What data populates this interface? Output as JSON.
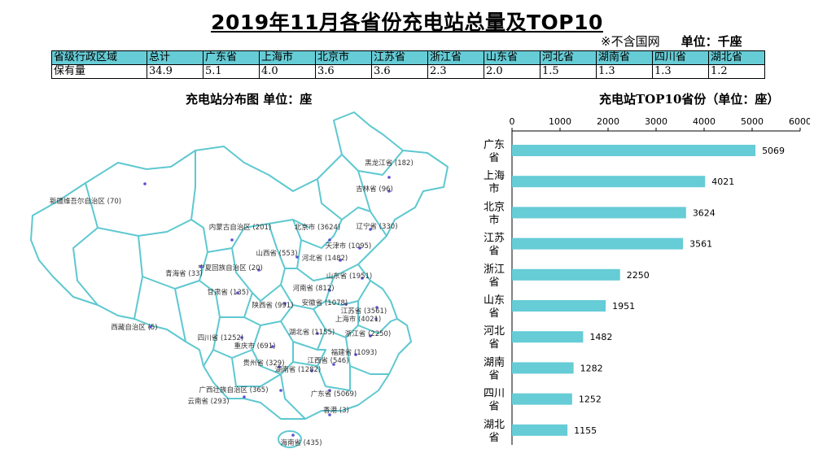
{
  "title": "2019年11月各省份充电站总量及TOP10",
  "note": "※不含国网",
  "unit_note": "单位：千座",
  "summary_table": {
    "header": [
      "省级行政区域",
      "总计",
      "广东省",
      "上海市",
      "北京市",
      "江苏省",
      "浙江省",
      "山东省",
      "河北省",
      "湖南省",
      "四川省",
      "湖北省"
    ],
    "row": [
      "保有量",
      "34.9",
      "5.1",
      "4.0",
      "3.6",
      "3.6",
      "2.3",
      "2.0",
      "1.5",
      "1.3",
      "1.3",
      "1.2"
    ]
  },
  "map": {
    "title": "充电站分布图  单位：座",
    "labels": [
      "黑龙江省 (182)",
      "吉林省 (96)",
      "辽宁省 (330)",
      "北京市 (3624)",
      "内蒙古自治区 (201)",
      "新疆维吾尔自治区 (70)",
      "天津市 (1095)",
      "河北省 (1482)",
      "山西省 (553)",
      "宁夏回族自治区 (20)",
      "青海省 (33)",
      "甘肃省 (135)",
      "山东省 (1951)",
      "河南省 (812)",
      "陕西省 (991)",
      "安徽省 (1078)",
      "江苏省 (3561)",
      "上海市 (4021)",
      "西藏自治区 (5)",
      "湖北省 (1155)",
      "浙江省 (2250)",
      "四川省 (1252)",
      "重庆市 (691)",
      "福建省 (1093)",
      "江西省 (546)",
      "贵州省 (329)",
      "湖南省 (1282)",
      "广西壮族自治区 (365)",
      "广东省 (5069)",
      "云南省 (293)",
      "香港 (3)",
      "海南省 (435)"
    ]
  },
  "chart_data": {
    "type": "bar",
    "orientation": "horizontal",
    "title": "充电站TOP10省份（单位：座）",
    "categories": [
      "广东省",
      "上海市",
      "北京市",
      "江苏省",
      "浙江省",
      "山东省",
      "河北省",
      "湖南省",
      "四川省",
      "湖北省"
    ],
    "values": [
      5069,
      4021,
      3624,
      3561,
      2250,
      1951,
      1482,
      1282,
      1252,
      1155
    ],
    "xlim": [
      0,
      6000
    ],
    "xticks": [
      0,
      1000,
      2000,
      3000,
      4000,
      5000,
      6000
    ],
    "bar_color": "#66ccd6",
    "grid": false,
    "data_labels": true
  },
  "colors": {
    "accent": "#66ccd6",
    "map_outline": "#5ec8d0",
    "dot": "#5a4fcf"
  }
}
